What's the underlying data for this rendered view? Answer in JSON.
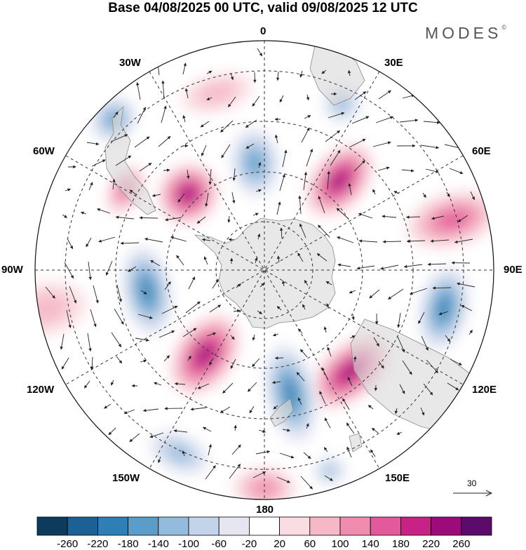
{
  "title": "Base 04/08/2025 00 UTC, valid 09/08/2025 12 UTC",
  "brand": "MODES",
  "brand_mark": "©",
  "longitude_labels": {
    "top": "0",
    "bottom": "180",
    "left": "90W",
    "right": "90E",
    "upper_left": "30W",
    "upper_left_2": "60W",
    "upper_right": "30E",
    "upper_right_2": "60E",
    "lower_left": "120W",
    "lower_left_2": "150W",
    "lower_right": "120E",
    "lower_right_2": "150E"
  },
  "reference_vector": "30",
  "colors": {
    "negative": [
      "#0c3b5e",
      "#1b6196",
      "#2f7fb6",
      "#5b9dca",
      "#93bbdc",
      "#c3d4ea",
      "#e6e6f3"
    ],
    "neutral": "#ffffff",
    "positive": [
      "#f9dde2",
      "#f6b8c6",
      "#f08cad",
      "#e25a9c",
      "#c72387",
      "#9b0b7a",
      "#5c0a6c"
    ]
  },
  "colorbar_ticks": [
    "-260",
    "-220",
    "-180",
    "-140",
    "-100",
    "-60",
    "-20",
    "20",
    "60",
    "100",
    "140",
    "180",
    "220",
    "260"
  ],
  "anomaly_centers": [
    {
      "sign": "neg",
      "level": 4,
      "lon": -100,
      "lat_r": 0.52,
      "rx": 0.17,
      "ry": 0.09
    },
    {
      "sign": "pos",
      "level": 5,
      "lon": -45,
      "lat_r": 0.47,
      "rx": 0.12,
      "ry": 0.11
    },
    {
      "sign": "pos",
      "level": 3,
      "lon": -60,
      "lat_r": 0.7,
      "rx": 0.1,
      "ry": 0.06
    },
    {
      "sign": "neg",
      "level": 3,
      "lon": -5,
      "lat_r": 0.47,
      "rx": 0.09,
      "ry": 0.13
    },
    {
      "sign": "pos",
      "level": 5,
      "lon": 40,
      "lat_r": 0.51,
      "rx": 0.1,
      "ry": 0.16
    },
    {
      "sign": "pos",
      "level": 3,
      "lon": 75,
      "lat_r": 0.85,
      "rx": 0.1,
      "ry": 0.18
    },
    {
      "sign": "neg",
      "level": 4,
      "lon": 102,
      "lat_r": 0.8,
      "rx": 0.16,
      "ry": 0.09
    },
    {
      "sign": "pos",
      "level": 5,
      "lon": 140,
      "lat_r": 0.58,
      "rx": 0.18,
      "ry": 0.1
    },
    {
      "sign": "neg",
      "level": 4,
      "lon": 168,
      "lat_r": 0.55,
      "rx": 0.09,
      "ry": 0.19
    },
    {
      "sign": "pos",
      "level": 5,
      "lon": -145,
      "lat_r": 0.45,
      "rx": 0.11,
      "ry": 0.17
    },
    {
      "sign": "pos",
      "level": 2,
      "lon": 180,
      "lat_r": 0.95,
      "rx": 0.12,
      "ry": 0.08
    },
    {
      "sign": "neg",
      "level": 2,
      "lon": -155,
      "lat_r": 0.88,
      "rx": 0.12,
      "ry": 0.07
    },
    {
      "sign": "neg",
      "level": 3,
      "lon": -45,
      "lat_r": 0.93,
      "rx": 0.09,
      "ry": 0.08
    },
    {
      "sign": "pos",
      "level": 1,
      "lon": -15,
      "lat_r": 0.8,
      "rx": 0.14,
      "ry": 0.07
    },
    {
      "sign": "neg",
      "level": 2,
      "lon": 25,
      "lat_r": 0.8,
      "rx": 0.07,
      "ry": 0.07
    },
    {
      "sign": "neg",
      "level": 2,
      "lon": 162,
      "lat_r": 0.92,
      "rx": 0.06,
      "ry": 0.05
    },
    {
      "sign": "pos",
      "level": 1,
      "lon": -100,
      "lat_r": 0.97,
      "rx": 0.1,
      "ry": 0.16
    }
  ]
}
